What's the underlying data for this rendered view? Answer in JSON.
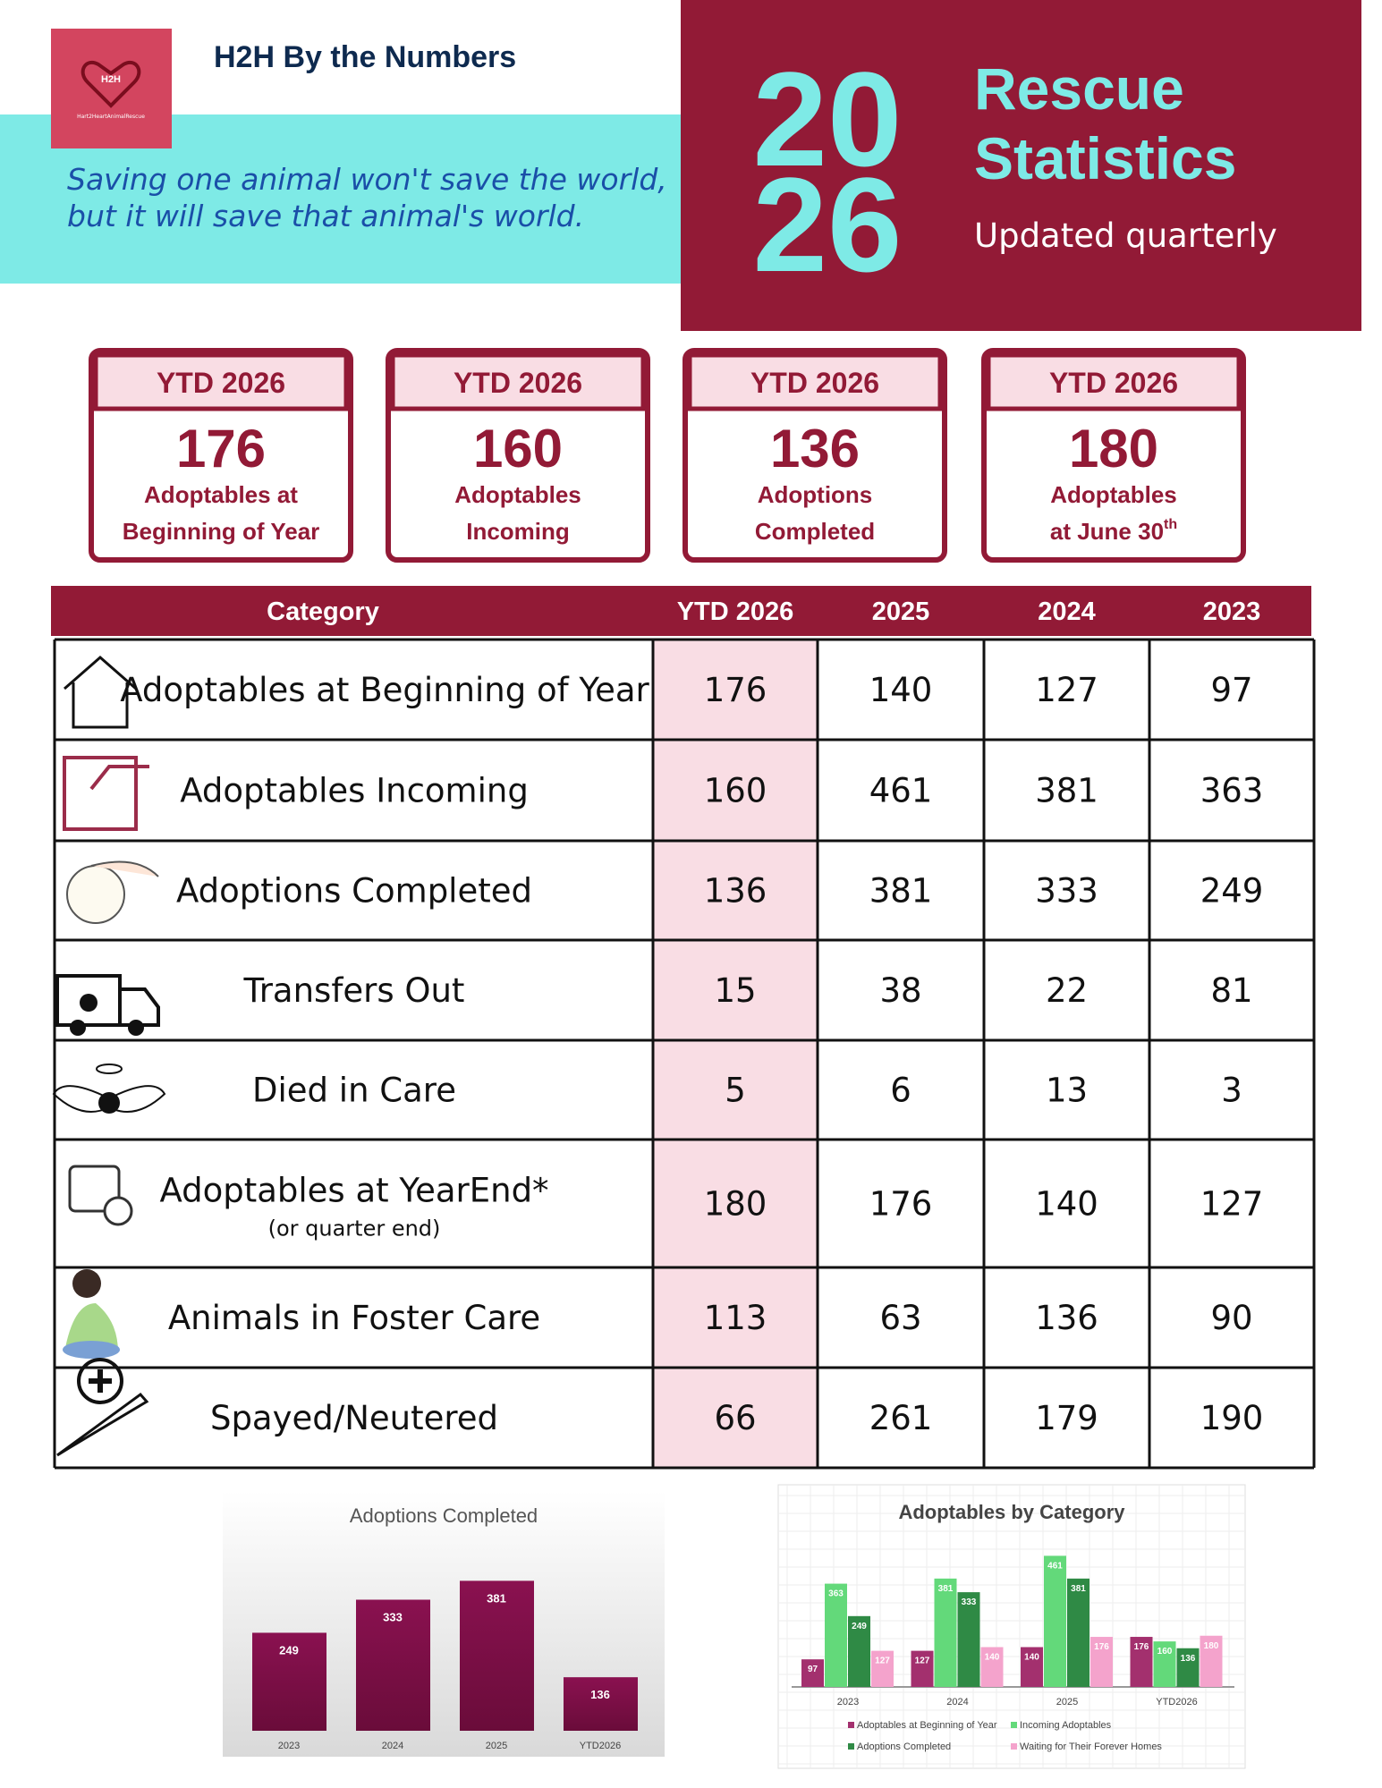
{
  "header": {
    "logo_text": "H2H",
    "logo_sub": "Hart2HeartAnimalRescue",
    "title": "H2H By the Numbers",
    "quote_line1": "Saving one animal won't save the world,",
    "quote_line2": "but it will save that animal's world.",
    "year_top": "20",
    "year_bottom": "26",
    "heading_line1": "Rescue",
    "heading_line2": "Statistics",
    "subheading": "Updated quarterly"
  },
  "cards": [
    {
      "label": "YTD 2026",
      "value": 176,
      "desc_line1": "Adoptables at",
      "desc_line2": "Beginning of Year"
    },
    {
      "label": "YTD 2026",
      "value": 160,
      "desc_line1": "Adoptables",
      "desc_line2": "Incoming"
    },
    {
      "label": "YTD 2026",
      "value": 136,
      "desc_line1": "Adoptions",
      "desc_line2": "Completed"
    },
    {
      "label": "YTD 2026",
      "value": 180,
      "desc_line1": "Adoptables",
      "desc_line2": "at June 30",
      "desc_sup": "th"
    }
  ],
  "table": {
    "columns": [
      "Category",
      "YTD 2026",
      "2025",
      "2024",
      "2023"
    ],
    "rows": [
      {
        "category": "Adoptables at Beginning of Year",
        "values": [
          176,
          140,
          127,
          97
        ]
      },
      {
        "category": "Adoptables Incoming",
        "values": [
          160,
          461,
          381,
          363
        ]
      },
      {
        "category": "Adoptions Completed",
        "values": [
          136,
          381,
          333,
          249
        ]
      },
      {
        "category": "Transfers Out",
        "values": [
          15,
          38,
          22,
          81
        ]
      },
      {
        "category": "Died in Care",
        "values": [
          5,
          6,
          13,
          3
        ]
      },
      {
        "category": "Adoptables at YearEnd*",
        "note": "(or quarter end)",
        "values": [
          180,
          176,
          140,
          127
        ]
      },
      {
        "category": "Animals in Foster Care",
        "values": [
          113,
          63,
          136,
          90
        ]
      },
      {
        "category": "Spayed/Neutered",
        "values": [
          66,
          261,
          179,
          190
        ]
      }
    ]
  },
  "chart_data": [
    {
      "type": "bar",
      "title": "Adoptions Completed",
      "categories": [
        "2023",
        "2024",
        "2025",
        "YTD2026"
      ],
      "values": [
        249,
        333,
        381,
        136
      ],
      "color": "#7d0f45",
      "ylim": [
        0,
        400
      ]
    },
    {
      "type": "grouped_bar",
      "title": "Adoptables by Category",
      "categories": [
        "2023",
        "2024",
        "2025",
        "YTD2026"
      ],
      "ylim": [
        0,
        500
      ],
      "series": [
        {
          "name": "Adoptables at Beginning of Year",
          "color": "#a3306e",
          "values": [
            97,
            127,
            140,
            176
          ]
        },
        {
          "name": "Incoming Adoptables",
          "color": "#63d97a",
          "values": [
            363,
            381,
            461,
            160
          ]
        },
        {
          "name": "Adoptions Completed",
          "color": "#2f8a45",
          "values": [
            249,
            333,
            381,
            136
          ]
        },
        {
          "name": "Waiting for Their Forever Homes",
          "color": "#f4a3cc",
          "values": [
            127,
            140,
            176,
            180
          ]
        }
      ]
    }
  ]
}
